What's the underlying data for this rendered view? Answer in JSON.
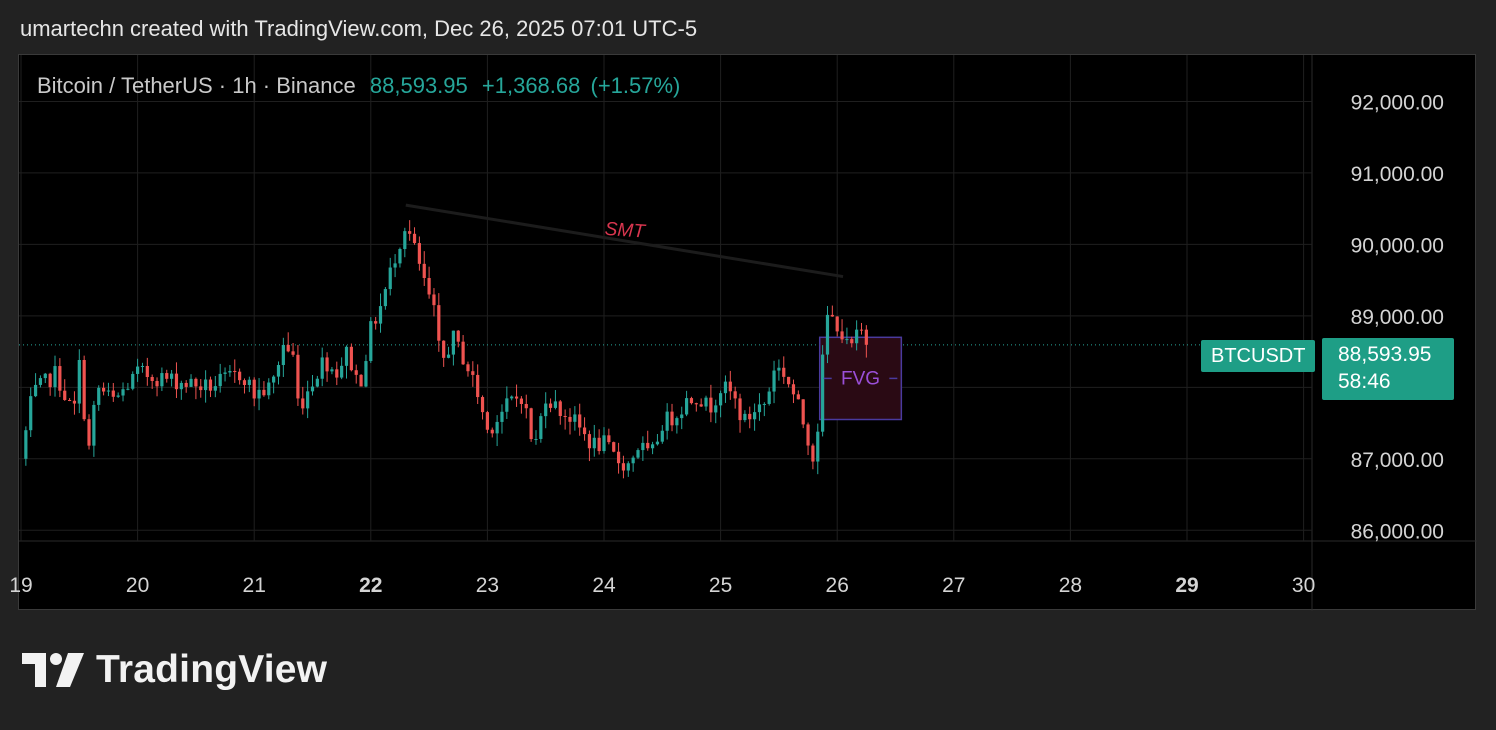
{
  "header": {
    "attribution": "umartechn created with TradingView.com, Dec 26, 2025 07:01 UTC-5"
  },
  "legend": {
    "symbol_line": "Bitcoin / TetherUS · 1h · Binance",
    "last": "88,593.95",
    "change": "+1,368.68",
    "change_pct": "(+1.57%)"
  },
  "price_label": {
    "symbol": "BTCUSDT",
    "price": "88,593.95",
    "countdown": "58:46"
  },
  "annotations": {
    "smt": "SMT",
    "fvg": "FVG"
  },
  "logo": {
    "text": "TradingView"
  },
  "colors": {
    "up": "#26a69a",
    "down": "#ef5350",
    "background": "#000000",
    "grid": "#1f1f1f",
    "smt_line": "#1c1c1c",
    "smt_text": "#d9364f",
    "fvg_border": "#4a3a9e",
    "fvg_fill": "#2a0a14",
    "fvg_text": "#9a4fd8"
  },
  "chart_data": {
    "type": "candlestick",
    "symbol": "Bitcoin / TetherUS",
    "interval": "1h",
    "exchange": "Binance",
    "y_ticks": [
      "86,000.00",
      "87,000.00",
      "88,000.00",
      "89,000.00",
      "90,000.00",
      "91,000.00",
      "92,000.00"
    ],
    "y_tick_values": [
      86000,
      87000,
      88000,
      89000,
      90000,
      91000,
      92000
    ],
    "ylim": [
      85850,
      92650
    ],
    "x_ticks": [
      {
        "label": "19",
        "day": 19,
        "bold": false
      },
      {
        "label": "20",
        "day": 20,
        "bold": false
      },
      {
        "label": "21",
        "day": 21,
        "bold": false
      },
      {
        "label": "22",
        "day": 22,
        "bold": true
      },
      {
        "label": "23",
        "day": 23,
        "bold": false
      },
      {
        "label": "24",
        "day": 24,
        "bold": false
      },
      {
        "label": "25",
        "day": 25,
        "bold": false
      },
      {
        "label": "26",
        "day": 26,
        "bold": false
      },
      {
        "label": "27",
        "day": 27,
        "bold": false
      },
      {
        "label": "28",
        "day": 28,
        "bold": false
      },
      {
        "label": "29",
        "day": 29,
        "bold": true
      },
      {
        "label": "30",
        "day": 30,
        "bold": false
      }
    ],
    "last_price": 88593.95,
    "waypoints": [
      [
        19.0,
        87000
      ],
      [
        19.1,
        87900
      ],
      [
        19.3,
        88200
      ],
      [
        19.45,
        87600
      ],
      [
        19.5,
        88300
      ],
      [
        19.58,
        87100
      ],
      [
        19.65,
        88000
      ],
      [
        19.8,
        87800
      ],
      [
        20.0,
        88200
      ],
      [
        20.3,
        88100
      ],
      [
        20.6,
        88000
      ],
      [
        20.9,
        88200
      ],
      [
        21.0,
        87900
      ],
      [
        21.15,
        88000
      ],
      [
        21.25,
        88600
      ],
      [
        21.35,
        88400
      ],
      [
        21.38,
        87700
      ],
      [
        21.5,
        88100
      ],
      [
        21.6,
        88400
      ],
      [
        21.7,
        88200
      ],
      [
        21.8,
        88500
      ],
      [
        21.9,
        88000
      ],
      [
        22.0,
        88800
      ],
      [
        22.1,
        89200
      ],
      [
        22.2,
        89800
      ],
      [
        22.3,
        90300
      ],
      [
        22.38,
        89900
      ],
      [
        22.45,
        89500
      ],
      [
        22.55,
        89000
      ],
      [
        22.6,
        88300
      ],
      [
        22.7,
        88700
      ],
      [
        22.8,
        88400
      ],
      [
        22.9,
        88000
      ],
      [
        23.0,
        87400
      ],
      [
        23.1,
        87600
      ],
      [
        23.2,
        87800
      ],
      [
        23.3,
        87900
      ],
      [
        23.4,
        87100
      ],
      [
        23.5,
        87900
      ],
      [
        23.6,
        87700
      ],
      [
        23.7,
        87600
      ],
      [
        23.8,
        87400
      ],
      [
        23.9,
        87200
      ],
      [
        24.0,
        87200
      ],
      [
        24.1,
        87000
      ],
      [
        24.2,
        86900
      ],
      [
        24.3,
        87200
      ],
      [
        24.4,
        87000
      ],
      [
        24.5,
        87500
      ],
      [
        24.6,
        87600
      ],
      [
        24.7,
        87800
      ],
      [
        24.8,
        87900
      ],
      [
        24.9,
        87700
      ],
      [
        25.0,
        88000
      ],
      [
        25.1,
        87900
      ],
      [
        25.2,
        87500
      ],
      [
        25.3,
        87700
      ],
      [
        25.4,
        87800
      ],
      [
        25.45,
        88300
      ],
      [
        25.55,
        88200
      ],
      [
        25.65,
        87800
      ],
      [
        25.75,
        87300
      ],
      [
        25.8,
        87000
      ],
      [
        25.85,
        87700
      ],
      [
        25.9,
        89000
      ],
      [
        26.0,
        88900
      ],
      [
        26.1,
        88500
      ],
      [
        26.2,
        88800
      ],
      [
        26.25,
        88650
      ],
      [
        26.28,
        88594
      ]
    ],
    "smt_line": [
      [
        22.3,
        90550
      ],
      [
        26.05,
        89550
      ]
    ],
    "fvg_zone": {
      "x0": 25.85,
      "x1": 26.55,
      "y_low": 87550,
      "y_high": 88700
    },
    "grid": true
  }
}
